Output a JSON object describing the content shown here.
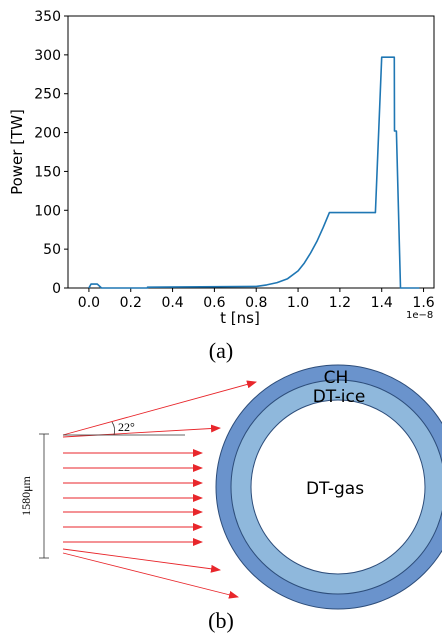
{
  "chart_data": {
    "type": "line",
    "xlabel": "t [ns]",
    "ylabel": "Power [TW]",
    "x_multiplier": "1e−8",
    "xlim": [
      -0.1,
      1.65
    ],
    "ylim": [
      0,
      350
    ],
    "x_ticks": [
      "0.0",
      "0.2",
      "0.4",
      "0.6",
      "0.8",
      "1.0",
      "1.2",
      "1.4",
      "1.6"
    ],
    "y_ticks": [
      "0",
      "50",
      "100",
      "150",
      "200",
      "250",
      "300",
      "350"
    ],
    "series": [
      {
        "color": "#1f77b4",
        "x": [
          0.0,
          0.01,
          0.04,
          0.06,
          0.06,
          0.28,
          0.28,
          0.8,
          0.85,
          0.9,
          0.95,
          1.0,
          1.03,
          1.06,
          1.09,
          1.12,
          1.15,
          1.37,
          1.4,
          1.46,
          1.461,
          1.47,
          1.49,
          1.58
        ],
        "y": [
          0,
          5,
          5,
          0,
          0,
          0,
          1,
          2,
          4,
          7,
          12,
          22,
          32,
          45,
          60,
          78,
          97,
          97,
          297,
          297,
          202,
          202,
          0,
          0
        ]
      }
    ]
  },
  "caption_a": "(a)",
  "caption_b": "(b)",
  "diagram": {
    "layers": {
      "outer": "CH",
      "middle": "DT-ice",
      "inner": "DT-gas"
    },
    "angle_label": "22°",
    "size_label": "1580μm",
    "colors": {
      "ch": "#6a93cc",
      "ice": "#8fb8dc",
      "gas": "#ffffff",
      "rays": "#e8262b"
    }
  }
}
